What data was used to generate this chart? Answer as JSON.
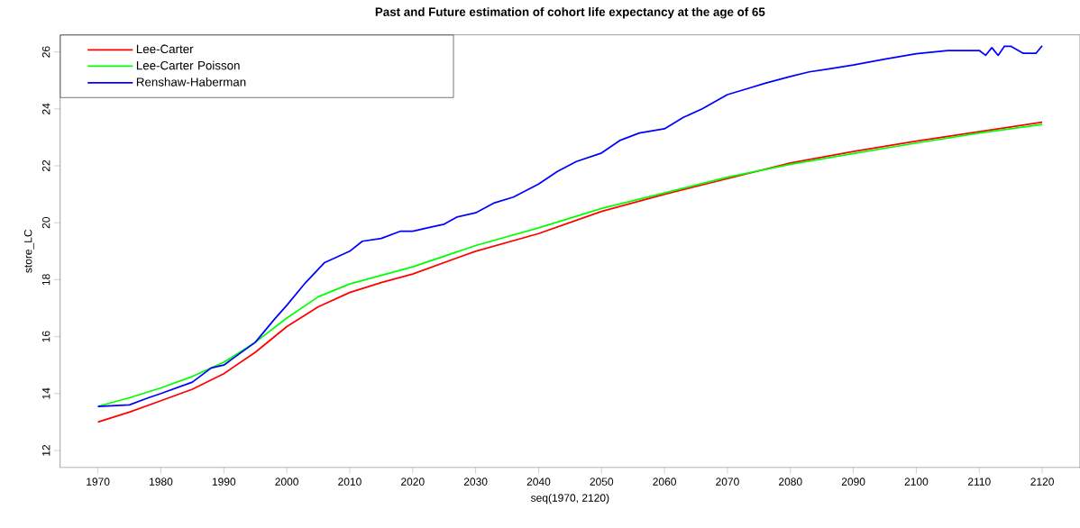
{
  "chart_data": {
    "type": "line",
    "title": "Past and Future estimation of cohort life expectancy at the age of 65",
    "xlabel": "seq(1970, 2120)",
    "ylabel": "store_LC",
    "xlim": [
      1964,
      2126
    ],
    "ylim": [
      11.4,
      26.6
    ],
    "xticks": [
      1970,
      1980,
      1990,
      2000,
      2010,
      2020,
      2030,
      2040,
      2050,
      2060,
      2070,
      2080,
      2090,
      2100,
      2110,
      2120
    ],
    "yticks": [
      12,
      14,
      16,
      18,
      20,
      22,
      24,
      26
    ],
    "legend": "top left",
    "grid": false,
    "marker": "none",
    "line_style": "solid",
    "series": [
      {
        "name": "Lee-Carter",
        "color": "#ff0000",
        "x": [
          1970,
          1975,
          1980,
          1985,
          1990,
          1995,
          2000,
          2005,
          2010,
          2015,
          2020,
          2030,
          2040,
          2050,
          2060,
          2070,
          2080,
          2090,
          2100,
          2110,
          2120
        ],
        "values": [
          13.0,
          13.35,
          13.75,
          14.15,
          14.7,
          15.45,
          16.35,
          17.05,
          17.55,
          17.9,
          18.2,
          19.0,
          19.62,
          20.4,
          21.0,
          21.55,
          22.1,
          22.5,
          22.87,
          23.2,
          23.53
        ]
      },
      {
        "name": "Lee-Carter Poisson",
        "color": "#00ff00",
        "x": [
          1970,
          1975,
          1980,
          1985,
          1990,
          1995,
          2000,
          2005,
          2010,
          2015,
          2020,
          2030,
          2040,
          2050,
          2060,
          2070,
          2080,
          2090,
          2100,
          2110,
          2120
        ],
        "values": [
          13.55,
          13.85,
          14.2,
          14.6,
          15.1,
          15.8,
          16.65,
          17.4,
          17.85,
          18.15,
          18.45,
          19.2,
          19.82,
          20.5,
          21.05,
          21.6,
          22.05,
          22.43,
          22.8,
          23.15,
          23.45
        ]
      },
      {
        "name": "Renshaw-Haberman",
        "color": "#0000ff",
        "x": [
          1970,
          1975,
          1978,
          1980,
          1985,
          1988,
          1990,
          1995,
          1998,
          2000,
          2003,
          2006,
          2010,
          2012,
          2015,
          2018,
          2020,
          2023,
          2025,
          2027,
          2030,
          2033,
          2036,
          2040,
          2043,
          2046,
          2050,
          2053,
          2056,
          2060,
          2063,
          2066,
          2070,
          2073,
          2076,
          2080,
          2083,
          2086,
          2090,
          2095,
          2100,
          2105,
          2110,
          2111,
          2112,
          2113,
          2114,
          2115,
          2117,
          2119,
          2120
        ],
        "values": [
          13.55,
          13.6,
          13.85,
          14.0,
          14.4,
          14.9,
          15.0,
          15.8,
          16.6,
          17.1,
          17.9,
          18.6,
          19.0,
          19.35,
          19.45,
          19.7,
          19.7,
          19.85,
          19.95,
          20.2,
          20.35,
          20.7,
          20.9,
          21.36,
          21.8,
          22.15,
          22.45,
          22.9,
          23.15,
          23.3,
          23.7,
          24.0,
          24.5,
          24.7,
          24.9,
          25.14,
          25.3,
          25.4,
          25.54,
          25.75,
          25.94,
          26.05,
          26.05,
          25.88,
          26.15,
          25.88,
          26.2,
          26.2,
          25.95,
          25.95,
          26.22
        ]
      }
    ]
  }
}
